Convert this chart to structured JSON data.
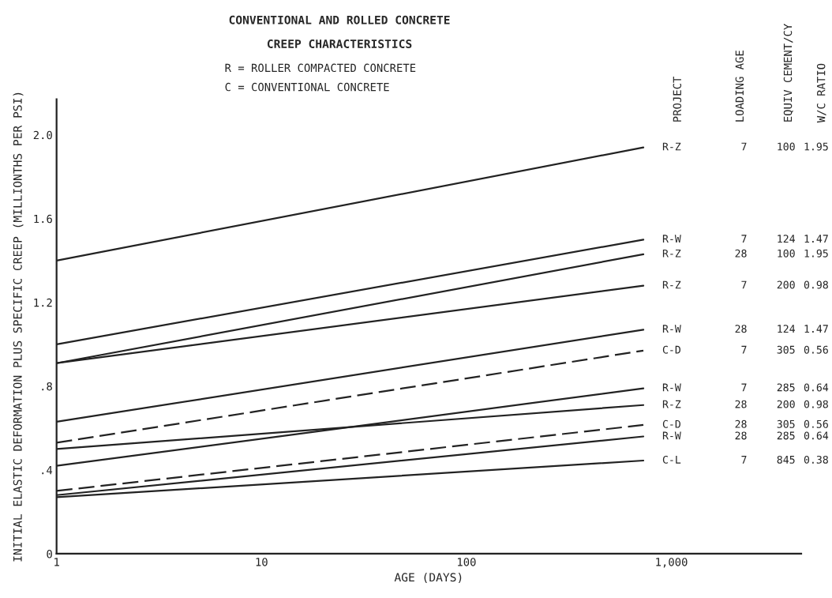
{
  "chart_data": {
    "type": "line",
    "title": "CONVENTIONAL AND ROLLED CONCRETE",
    "subtitle": "CREEP CHARACTERISTICS",
    "xlabel": "AGE (DAYS)",
    "ylabel": "INITIAL ELASTIC DEFORMATION PLUS SPECIFIC CREEP (MILLIONTHS PER PSI)",
    "x": [
      1,
      730
    ],
    "log": "x",
    "xlim": [
      1,
      4300
    ],
    "xticks": [
      1,
      10,
      100,
      {
        "value": 1000,
        "label": "1,000"
      }
    ],
    "ylim": [
      0,
      2.17
    ],
    "yticks": [
      0,
      {
        "value": 0.4,
        "label": ".4"
      },
      {
        "value": 0.8,
        "label": ".8"
      },
      1.2,
      1.6,
      {
        "value": 2.0,
        "label": "2.0"
      }
    ],
    "grid": false,
    "legend": false,
    "marker": "none",
    "series": [
      {
        "name": "R-Z",
        "color": "#222222",
        "values": [
          1.4,
          1.94
        ],
        "line_style": "solid"
      },
      {
        "name": "R-W",
        "color": "#222222",
        "values": [
          1.0,
          1.5
        ],
        "line_style": "solid"
      },
      {
        "name": "R-Z",
        "color": "#222222",
        "values": [
          0.91,
          1.43
        ],
        "line_style": "solid"
      },
      {
        "name": "R-Z",
        "color": "#222222",
        "values": [
          0.91,
          1.28
        ],
        "line_style": "solid"
      },
      {
        "name": "R-W",
        "color": "#222222",
        "values": [
          0.63,
          1.07
        ],
        "line_style": "solid"
      },
      {
        "name": "C-D",
        "color": "#222222",
        "values": [
          0.53,
          0.97
        ],
        "line_style": "dashed"
      },
      {
        "name": "R-W",
        "color": "#222222",
        "values": [
          0.42,
          0.79
        ],
        "line_style": "solid"
      },
      {
        "name": "R-Z",
        "color": "#222222",
        "values": [
          0.5,
          0.71
        ],
        "line_style": "solid"
      },
      {
        "name": "C-D",
        "color": "#222222",
        "values": [
          0.3,
          0.615
        ],
        "line_style": "dashed"
      },
      {
        "name": "R-W",
        "color": "#222222",
        "values": [
          0.28,
          0.56
        ],
        "line_style": "solid"
      },
      {
        "name": "C-L",
        "color": "#222222",
        "values": [
          0.27,
          0.445
        ],
        "line_style": "solid"
      }
    ],
    "annotations": [
      "R = ROLLER COMPACTED CONCRETE",
      "C = CONVENTIONAL CONCRETE",
      "PROJECT",
      "LOADING AGE",
      "EQUIV CEMENT/CY",
      "W/C RATIO",
      "7",
      "100",
      "1.95",
      "7",
      "124",
      "1.47",
      "28",
      "100",
      "1.95",
      "7",
      "200",
      "0.98",
      "28",
      "124",
      "1.47",
      "7",
      "305",
      "0.56",
      "7",
      "285",
      "0.64",
      "28",
      "200",
      "0.98",
      "28",
      "305",
      "0.56",
      "28",
      "285",
      "0.64",
      "7",
      "845",
      "0.38"
    ]
  }
}
